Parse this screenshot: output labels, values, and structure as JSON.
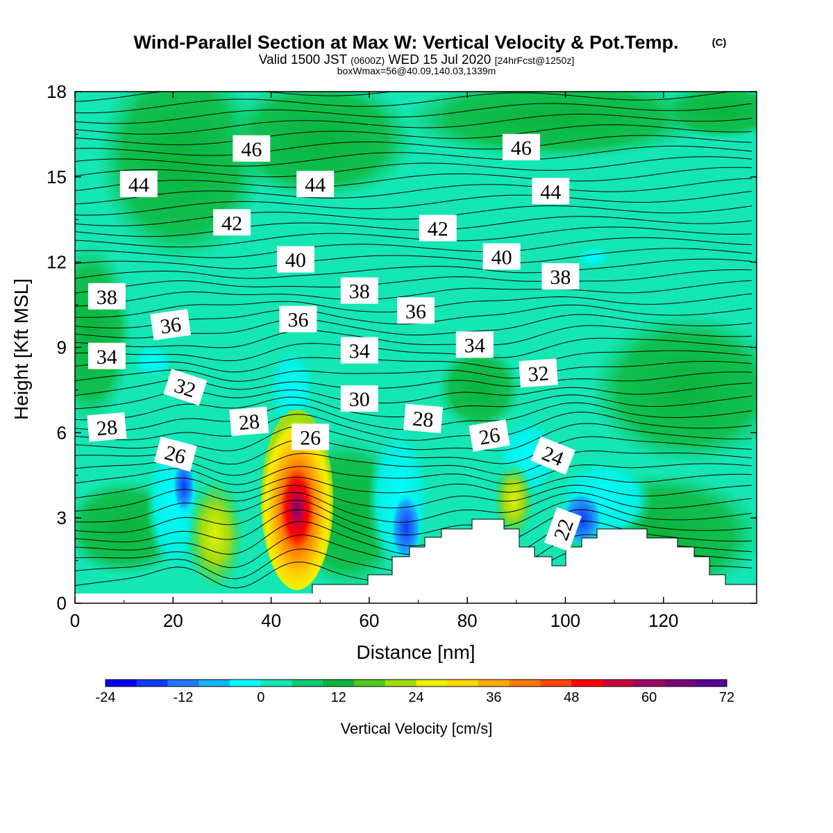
{
  "header": {
    "title": "Wind-Parallel Section at Max W: Vertical Velocity & Pot.Temp.",
    "title_mark": "(C)",
    "valid_prefix": "Valid 1500 JST",
    "valid_utc": "(0600Z)",
    "valid_date": "WED 15 Jul 2020",
    "forecast": "[24hrFcst@1250z]",
    "box_info": "boxWmax=56@40.09,140.03,1339m"
  },
  "chart_data": {
    "type": "heatmap",
    "xlabel": "Distance [nm]",
    "ylabel": "Height [Kft MSL]",
    "xlim": [
      0,
      139
    ],
    "ylim": [
      0,
      18
    ],
    "x_ticks": [
      0,
      20,
      40,
      60,
      80,
      100,
      120
    ],
    "y_ticks": [
      0,
      3,
      6,
      9,
      12,
      15,
      18
    ],
    "colorbar": {
      "label": "Vertical Velocity [cm/s]",
      "min": -24,
      "max": 72,
      "step": 4,
      "tick_values": [
        -24,
        -12,
        0,
        12,
        24,
        36,
        48,
        60,
        72
      ],
      "colors": [
        "#0000ee",
        "#0a3cf5",
        "#1e78ff",
        "#14b4ff",
        "#00ffff",
        "#14e6b4",
        "#10cc70",
        "#0ab43c",
        "#50c81e",
        "#a0dc14",
        "#f0f000",
        "#ffd700",
        "#ffaa00",
        "#ff7800",
        "#ff4600",
        "#ff0000",
        "#c8003c",
        "#a00064",
        "#780078",
        "#5a0096"
      ]
    },
    "theta_labels": [
      {
        "value": "46",
        "x": 36,
        "y": 16.0,
        "rot": 0
      },
      {
        "value": "46",
        "x": 91,
        "y": 16.05,
        "rot": 0
      },
      {
        "value": "44",
        "x": 13,
        "y": 14.75,
        "rot": 0
      },
      {
        "value": "44",
        "x": 49,
        "y": 14.75,
        "rot": 0
      },
      {
        "value": "44",
        "x": 97,
        "y": 14.5,
        "rot": 0
      },
      {
        "value": "42",
        "x": 32,
        "y": 13.4,
        "rot": 0
      },
      {
        "value": "42",
        "x": 74,
        "y": 13.2,
        "rot": 0
      },
      {
        "value": "40",
        "x": 45,
        "y": 12.1,
        "rot": 0
      },
      {
        "value": "40",
        "x": 87,
        "y": 12.2,
        "rot": 0
      },
      {
        "value": "38",
        "x": 6.5,
        "y": 10.8,
        "rot": 0
      },
      {
        "value": "38",
        "x": 58,
        "y": 11.0,
        "rot": 0
      },
      {
        "value": "38",
        "x": 99,
        "y": 11.5,
        "rot": 0
      },
      {
        "value": "36",
        "x": 19.5,
        "y": 9.8,
        "rot": -8
      },
      {
        "value": "36",
        "x": 45.5,
        "y": 10.0,
        "rot": 0
      },
      {
        "value": "36",
        "x": 69.5,
        "y": 10.3,
        "rot": 0
      },
      {
        "value": "34",
        "x": 6.5,
        "y": 8.7,
        "rot": 0
      },
      {
        "value": "34",
        "x": 58,
        "y": 8.9,
        "rot": 0
      },
      {
        "value": "34",
        "x": 81.5,
        "y": 9.1,
        "rot": 0
      },
      {
        "value": "32",
        "x": 22.5,
        "y": 7.6,
        "rot": 18
      },
      {
        "value": "32",
        "x": 94.5,
        "y": 8.1,
        "rot": -4
      },
      {
        "value": "30",
        "x": 58,
        "y": 7.2,
        "rot": 0
      },
      {
        "value": "28",
        "x": 6.5,
        "y": 6.2,
        "rot": -5
      },
      {
        "value": "28",
        "x": 35.5,
        "y": 6.4,
        "rot": -5
      },
      {
        "value": "28",
        "x": 71,
        "y": 6.5,
        "rot": 5
      },
      {
        "value": "26",
        "x": 20.5,
        "y": 5.25,
        "rot": 15
      },
      {
        "value": "26",
        "x": 48,
        "y": 5.85,
        "rot": 0
      },
      {
        "value": "26",
        "x": 84.5,
        "y": 5.9,
        "rot": -10
      },
      {
        "value": "24",
        "x": 97.5,
        "y": 5.2,
        "rot": 22
      },
      {
        "value": "22",
        "x": 99.5,
        "y": 2.6,
        "rot": -70
      }
    ]
  }
}
